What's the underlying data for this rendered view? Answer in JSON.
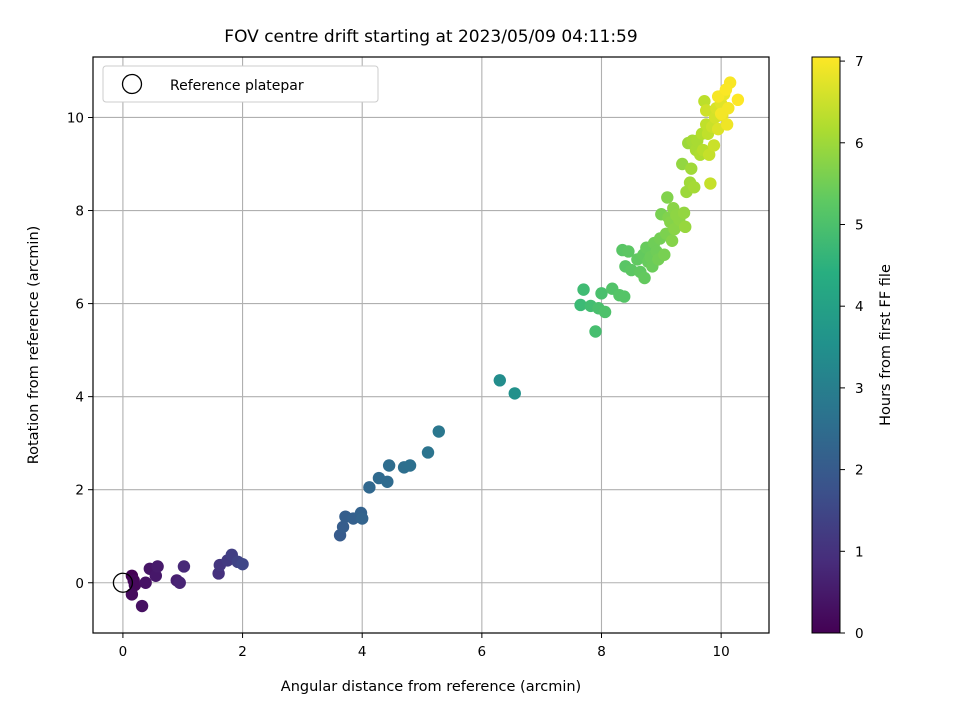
{
  "chart_data": {
    "type": "scatter",
    "title": "FOV centre drift starting at 2023/05/09 04:11:59",
    "xlabel": "Angular distance from reference (arcmin)",
    "ylabel": "Rotation from reference (arcmin)",
    "xlim": [
      -0.5,
      10.8
    ],
    "ylim": [
      -1.08,
      11.3
    ],
    "xticks": [
      0,
      2,
      4,
      6,
      8,
      10
    ],
    "yticks": [
      0,
      2,
      4,
      6,
      8,
      10
    ],
    "grid": true,
    "colorbar": {
      "label": "Hours from first FF file",
      "range": [
        0,
        7.05
      ],
      "ticks": [
        0,
        1,
        2,
        3,
        4,
        5,
        6,
        7
      ],
      "colormap": "viridis"
    },
    "legend": {
      "position": "top-left",
      "entries": [
        "Reference platepar"
      ]
    },
    "reference_point": {
      "x": 0,
      "y": 0
    },
    "series": [
      {
        "name": "Reference platepar",
        "marker": "open-circle",
        "points": [
          [
            0,
            0
          ]
        ]
      }
    ],
    "points": [
      [
        0.15,
        0.15,
        0.0
      ],
      [
        0.18,
        0.05,
        0.1
      ],
      [
        0.2,
        -0.05,
        0.15
      ],
      [
        0.15,
        -0.25,
        0.2
      ],
      [
        0.32,
        -0.5,
        0.3
      ],
      [
        0.38,
        0.0,
        0.35
      ],
      [
        0.45,
        0.3,
        0.4
      ],
      [
        0.55,
        0.15,
        0.45
      ],
      [
        0.58,
        0.35,
        0.5
      ],
      [
        0.9,
        0.05,
        0.6
      ],
      [
        0.95,
        0.0,
        0.7
      ],
      [
        1.02,
        0.35,
        0.8
      ],
      [
        1.6,
        0.2,
        1.0
      ],
      [
        1.62,
        0.38,
        1.1
      ],
      [
        1.75,
        0.48,
        1.2
      ],
      [
        1.82,
        0.6,
        1.3
      ],
      [
        1.92,
        0.45,
        1.4
      ],
      [
        2.0,
        0.4,
        1.5
      ],
      [
        3.63,
        1.02,
        2.0
      ],
      [
        3.68,
        1.2,
        2.05
      ],
      [
        3.72,
        1.42,
        2.1
      ],
      [
        3.85,
        1.38,
        2.15
      ],
      [
        3.98,
        1.5,
        2.2
      ],
      [
        4.0,
        1.38,
        2.25
      ],
      [
        4.12,
        2.05,
        2.35
      ],
      [
        4.28,
        2.25,
        2.4
      ],
      [
        4.42,
        2.17,
        2.45
      ],
      [
        4.45,
        2.52,
        2.5
      ],
      [
        4.7,
        2.48,
        2.55
      ],
      [
        4.8,
        2.52,
        2.6
      ],
      [
        5.1,
        2.8,
        2.7
      ],
      [
        5.28,
        3.25,
        2.8
      ],
      [
        6.3,
        4.35,
        3.45
      ],
      [
        6.55,
        4.07,
        3.55
      ],
      [
        7.65,
        5.97,
        4.8
      ],
      [
        7.7,
        6.3,
        4.85
      ],
      [
        7.82,
        5.95,
        4.9
      ],
      [
        7.9,
        5.4,
        4.95
      ],
      [
        7.95,
        5.9,
        5.0
      ],
      [
        8.0,
        6.22,
        5.0
      ],
      [
        8.06,
        5.82,
        5.05
      ],
      [
        8.18,
        6.32,
        5.1
      ],
      [
        8.3,
        6.18,
        5.15
      ],
      [
        8.38,
        6.15,
        5.15
      ],
      [
        8.35,
        7.15,
        5.2
      ],
      [
        8.4,
        6.8,
        5.2
      ],
      [
        8.45,
        7.12,
        5.25
      ],
      [
        8.5,
        6.72,
        5.25
      ],
      [
        8.6,
        6.95,
        5.3
      ],
      [
        8.65,
        6.68,
        5.3
      ],
      [
        8.7,
        7.05,
        5.35
      ],
      [
        8.72,
        6.55,
        5.35
      ],
      [
        8.75,
        7.2,
        5.4
      ],
      [
        8.78,
        6.9,
        5.4
      ],
      [
        8.82,
        7.0,
        5.45
      ],
      [
        8.85,
        6.8,
        5.45
      ],
      [
        8.88,
        7.3,
        5.5
      ],
      [
        8.92,
        7.12,
        5.5
      ],
      [
        8.95,
        6.95,
        5.55
      ],
      [
        8.98,
        7.4,
        5.55
      ],
      [
        9.0,
        7.92,
        5.6
      ],
      [
        9.05,
        7.05,
        5.6
      ],
      [
        9.08,
        7.5,
        5.65
      ],
      [
        9.1,
        8.28,
        5.7
      ],
      [
        9.12,
        7.85,
        5.7
      ],
      [
        9.15,
        7.75,
        5.75
      ],
      [
        9.18,
        7.35,
        5.75
      ],
      [
        9.2,
        8.05,
        5.8
      ],
      [
        9.22,
        7.6,
        5.8
      ],
      [
        9.25,
        7.9,
        5.85
      ],
      [
        9.3,
        7.8,
        5.85
      ],
      [
        9.35,
        9.0,
        5.9
      ],
      [
        9.38,
        7.95,
        5.9
      ],
      [
        9.4,
        7.65,
        5.95
      ],
      [
        9.42,
        8.4,
        6.0
      ],
      [
        9.45,
        9.45,
        6.0
      ],
      [
        9.48,
        8.6,
        6.05
      ],
      [
        9.5,
        8.9,
        6.05
      ],
      [
        9.52,
        9.5,
        6.1
      ],
      [
        9.55,
        8.5,
        6.1
      ],
      [
        9.58,
        9.3,
        6.15
      ],
      [
        9.6,
        9.5,
        6.15
      ],
      [
        9.65,
        9.2,
        6.2
      ],
      [
        9.68,
        9.65,
        6.25
      ],
      [
        9.7,
        9.3,
        6.3
      ],
      [
        9.72,
        10.35,
        6.35
      ],
      [
        9.75,
        9.85,
        6.4
      ],
      [
        9.78,
        9.65,
        6.4
      ],
      [
        9.8,
        9.2,
        6.45
      ],
      [
        9.82,
        8.58,
        6.45
      ],
      [
        9.85,
        9.8,
        6.5
      ],
      [
        9.88,
        9.4,
        6.5
      ],
      [
        9.75,
        10.15,
        6.55
      ],
      [
        9.9,
        10.0,
        6.6
      ],
      [
        9.92,
        10.2,
        6.65
      ],
      [
        9.95,
        9.75,
        6.7
      ],
      [
        10.0,
        10.3,
        6.75
      ],
      [
        10.02,
        10.05,
        6.8
      ],
      [
        10.05,
        10.5,
        6.85
      ],
      [
        10.1,
        9.85,
        6.9
      ],
      [
        10.12,
        10.2,
        6.95
      ],
      [
        10.15,
        10.75,
        7.0
      ],
      [
        10.28,
        10.38,
        7.05
      ],
      [
        10.0,
        10.08,
        6.95
      ],
      [
        9.95,
        10.45,
        6.98
      ],
      [
        10.08,
        10.6,
        7.02
      ]
    ]
  }
}
